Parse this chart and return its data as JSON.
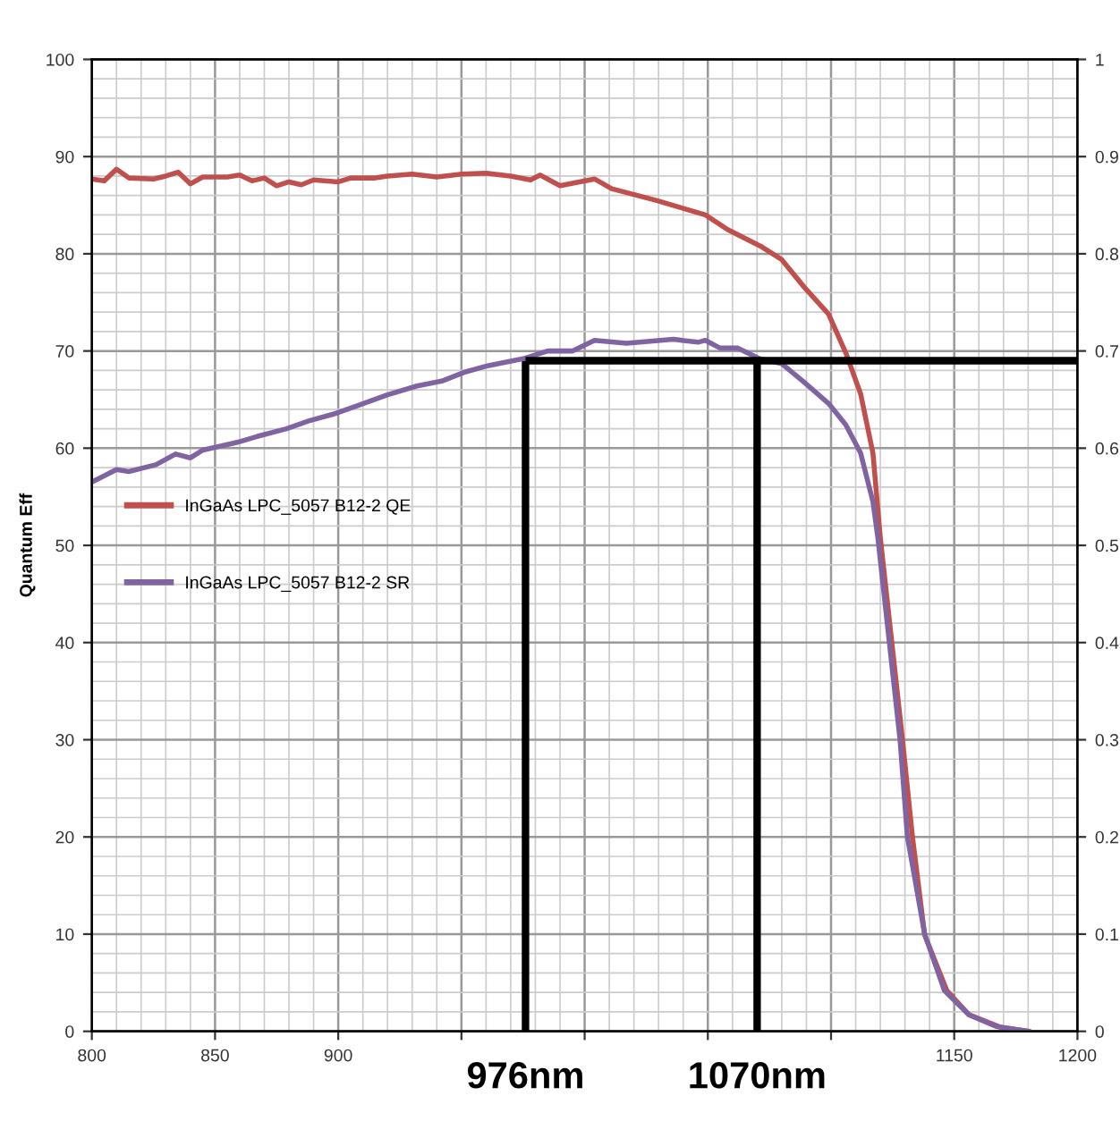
{
  "chart_data": {
    "type": "line",
    "ylabel": "Quantum Eff",
    "xlim": [
      800,
      1200
    ],
    "xticks": [
      800,
      850,
      900,
      {
        "value": 950,
        "label": null
      },
      {
        "value": 1000,
        "label": null
      },
      {
        "value": 1050,
        "label": null
      },
      {
        "value": 1100,
        "label": null
      },
      1150,
      1200
    ],
    "ylim": [
      0,
      100
    ],
    "yticks": [
      0,
      10,
      20,
      30,
      40,
      50,
      60,
      70,
      80,
      90,
      100
    ],
    "y2lim": [
      0,
      1
    ],
    "y2ticks": [
      0,
      0.1,
      0.2,
      0.3,
      0.4,
      0.5,
      0.6,
      0.7,
      0.8,
      0.9,
      1
    ],
    "grid": true,
    "legend": "center left",
    "series": [
      {
        "name": "InGaAs LPC_5057 B12-2 QE",
        "color": "#c0504d",
        "x": [
          800,
          805,
          810,
          815,
          825,
          830,
          835,
          840,
          845,
          855,
          860,
          865,
          870,
          875,
          880,
          885,
          890,
          900,
          905,
          915,
          920,
          930,
          940,
          950,
          960,
          970,
          978,
          982,
          990,
          996,
          1004,
          1011,
          1029,
          1049,
          1058,
          1072,
          1080,
          1089,
          1099,
          1106,
          1112,
          1117,
          1120,
          1129,
          1133,
          1138,
          1147,
          1156,
          1169,
          1180
        ],
        "values": [
          87.7,
          87.5,
          88.7,
          87.8,
          87.7,
          88.0,
          88.4,
          87.2,
          87.9,
          87.9,
          88.1,
          87.5,
          87.8,
          87.0,
          87.4,
          87.1,
          87.6,
          87.4,
          87.8,
          87.8,
          88.0,
          88.2,
          87.9,
          88.2,
          88.3,
          88.0,
          87.6,
          88.1,
          87.0,
          87.3,
          87.7,
          86.7,
          85.5,
          84.0,
          82.5,
          80.7,
          79.4,
          76.6,
          73.8,
          69.8,
          65.6,
          59.5,
          50.8,
          30.0,
          20.1,
          9.9,
          4.2,
          1.7,
          0.4,
          0
        ]
      },
      {
        "name": "InGaAs LPC_5057 B12-2 SR",
        "color": "#8064a2",
        "axis": "y2",
        "x": [
          800,
          810,
          815,
          826,
          834,
          840,
          845,
          859,
          867,
          879,
          888,
          898,
          908,
          920,
          932,
          942,
          951,
          961,
          975,
          985,
          995,
          1004,
          1017,
          1036,
          1046,
          1049,
          1055,
          1062,
          1071,
          1080,
          1089,
          1099,
          1106,
          1112,
          1117,
          1119,
          1128,
          1131,
          1138,
          1146,
          1156,
          1167,
          1180
        ],
        "values": [
          0.565,
          0.578,
          0.576,
          0.583,
          0.594,
          0.59,
          0.598,
          0.606,
          0.612,
          0.62,
          0.628,
          0.635,
          0.644,
          0.655,
          0.664,
          0.669,
          0.678,
          0.685,
          0.692,
          0.7,
          0.7,
          0.711,
          0.708,
          0.712,
          0.709,
          0.711,
          0.703,
          0.703,
          0.692,
          0.687,
          0.668,
          0.646,
          0.624,
          0.595,
          0.545,
          0.508,
          0.3,
          0.2,
          0.1,
          0.042,
          0.017,
          0.005,
          0
        ]
      }
    ],
    "ref_lines": [
      {
        "axis": "x",
        "value": 976,
        "label": "976nm",
        "color": "#000000"
      },
      {
        "axis": "x",
        "value": 1070,
        "label": "1070nm",
        "color": "#000000"
      },
      {
        "axis": "y2",
        "value": 0.69,
        "color": "#000000"
      }
    ]
  }
}
